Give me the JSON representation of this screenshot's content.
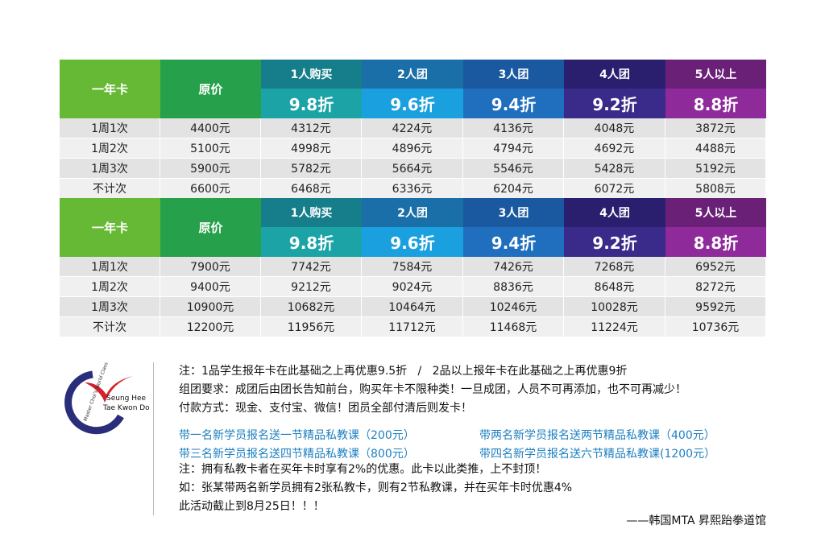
{
  "tables": [
    {
      "corner": "一年卡",
      "base_header": "原价",
      "columns": [
        {
          "name": "1人购买",
          "discount": "9.8折"
        },
        {
          "name": "2人团",
          "discount": "9.6折"
        },
        {
          "name": "3人团",
          "discount": "9.4折"
        },
        {
          "name": "4人团",
          "discount": "9.2折"
        },
        {
          "name": "5人以上",
          "discount": "8.8折"
        }
      ],
      "rows": [
        [
          "1周1次",
          "4400元",
          "4312元",
          "4224元",
          "4136元",
          "4048元",
          "3872元"
        ],
        [
          "1周2次",
          "5100元",
          "4998元",
          "4896元",
          "4794元",
          "4692元",
          "4488元"
        ],
        [
          "1周3次",
          "5900元",
          "5782元",
          "5664元",
          "5546元",
          "5428元",
          "5192元"
        ],
        [
          "不计次",
          "6600元",
          "6468元",
          "6336元",
          "6204元",
          "6072元",
          "5808元"
        ]
      ]
    },
    {
      "corner": "一年卡",
      "base_header": "原价",
      "columns": [
        {
          "name": "1人购买",
          "discount": "9.8折"
        },
        {
          "name": "2人团",
          "discount": "9.6折"
        },
        {
          "name": "3人团",
          "discount": "9.4折"
        },
        {
          "name": "4人团",
          "discount": "9.2折"
        },
        {
          "name": "5人以上",
          "discount": "8.8折"
        }
      ],
      "rows": [
        [
          "1周1次",
          "7900元",
          "7742元",
          "7584元",
          "7426元",
          "7268元",
          "6952元"
        ],
        [
          "1周2次",
          "9400元",
          "9212元",
          "9024元",
          "8836元",
          "8648元",
          "8272元"
        ],
        [
          "1周3次",
          "10900元",
          "10682元",
          "10464元",
          "10246元",
          "10028元",
          "9592元"
        ],
        [
          "不计次",
          "12200元",
          "11956元",
          "11712元",
          "11468元",
          "11224元",
          "10736元"
        ]
      ]
    }
  ],
  "logo": {
    "name_line1": "Seung Hee",
    "name_line2": "Tae Kwon Do",
    "arc_text": "Master Choi's World Class"
  },
  "notes": {
    "rules": [
      "注：1品学生报年卡在此基础之上再优惠9.5折   /   2品以上报年卡在此基础之上再优惠9折",
      "组团要求：成团后由团长告知前台，购买年卡不限种类！一旦成团，人员不可再添加，也不可再减少！",
      "付款方式：现金、支付宝、微信！团员全部付清后则发卡！"
    ],
    "promos": [
      [
        "带一名新学员报名送一节精品私教课（200元）",
        "带两名新学员报名送两节精品私教课（400元）"
      ],
      [
        "带三名新学员报名送四节精品私教课（800元）",
        "带四名新学员报名送六节精品私教课(1200元）"
      ]
    ],
    "extra": [
      "注：拥有私教卡者在买年卡时享有2%的优惠。此卡以此类推，上不封顶！",
      "如：张某带两名新学员拥有2张私教卡，则有2节私教课，并在买年卡时优惠4%",
      "此活动截止到8月25日！！！"
    ],
    "signature": "——韩国MTA 昇熙跆拳道馆"
  }
}
